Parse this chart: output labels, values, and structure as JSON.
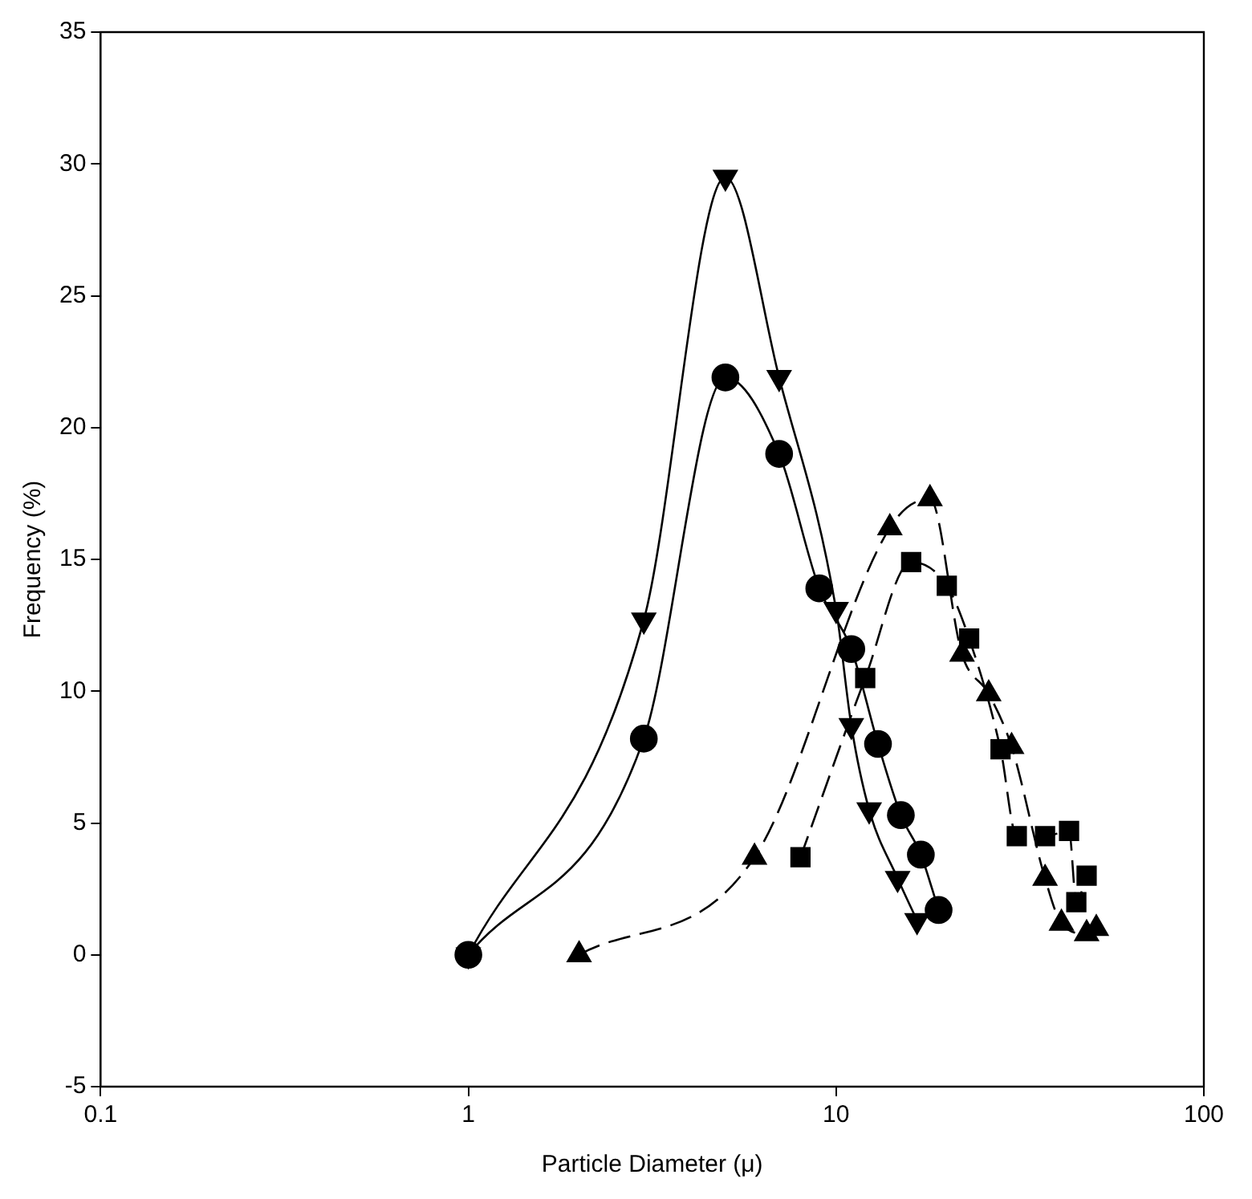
{
  "chart_data": {
    "type": "line",
    "xlabel": "Particle Diameter (μ)",
    "ylabel": "Frequency (%)",
    "log": "x",
    "xlim": [
      0.1,
      100
    ],
    "xticks": [
      0.1,
      1,
      10,
      100
    ],
    "ylim": [
      -5,
      35
    ],
    "yticks": [
      -5,
      0,
      5,
      10,
      15,
      20,
      25,
      30,
      35
    ],
    "grid": false,
    "legend": false,
    "series": [
      {
        "color": "#000000",
        "marker": "circle",
        "line_style": "solid",
        "x": [
          1,
          3,
          5,
          7,
          9,
          11,
          13,
          15,
          17,
          19
        ],
        "values": [
          0,
          8.2,
          21.9,
          19,
          13.9,
          11.6,
          8,
          5.3,
          3.8,
          1.7
        ]
      },
      {
        "color": "#000000",
        "marker": "triangle-down",
        "line_style": "solid",
        "x": [
          1,
          3,
          5,
          7,
          10,
          11,
          12.3,
          14.7,
          16.6
        ],
        "values": [
          0,
          12.7,
          29.5,
          21.9,
          13.1,
          8.7,
          5.5,
          2.9,
          1.3
        ]
      },
      {
        "color": "#000000",
        "marker": "triangle",
        "line_style": "dashed",
        "x": [
          2,
          6,
          14,
          18,
          22,
          26,
          30,
          37,
          41,
          48,
          51
        ],
        "values": [
          0,
          3.7,
          16.2,
          17.3,
          11.4,
          9.9,
          7.9,
          2.9,
          1.2,
          0.8,
          1
        ]
      },
      {
        "color": "#000000",
        "marker": "square",
        "line_style": "dashed",
        "x": [
          8,
          12,
          16,
          20,
          23,
          28,
          31,
          37,
          43,
          45,
          48
        ],
        "values": [
          3.7,
          10.5,
          14.9,
          14,
          12,
          7.8,
          4.5,
          4.5,
          4.7,
          2,
          3
        ]
      }
    ]
  }
}
